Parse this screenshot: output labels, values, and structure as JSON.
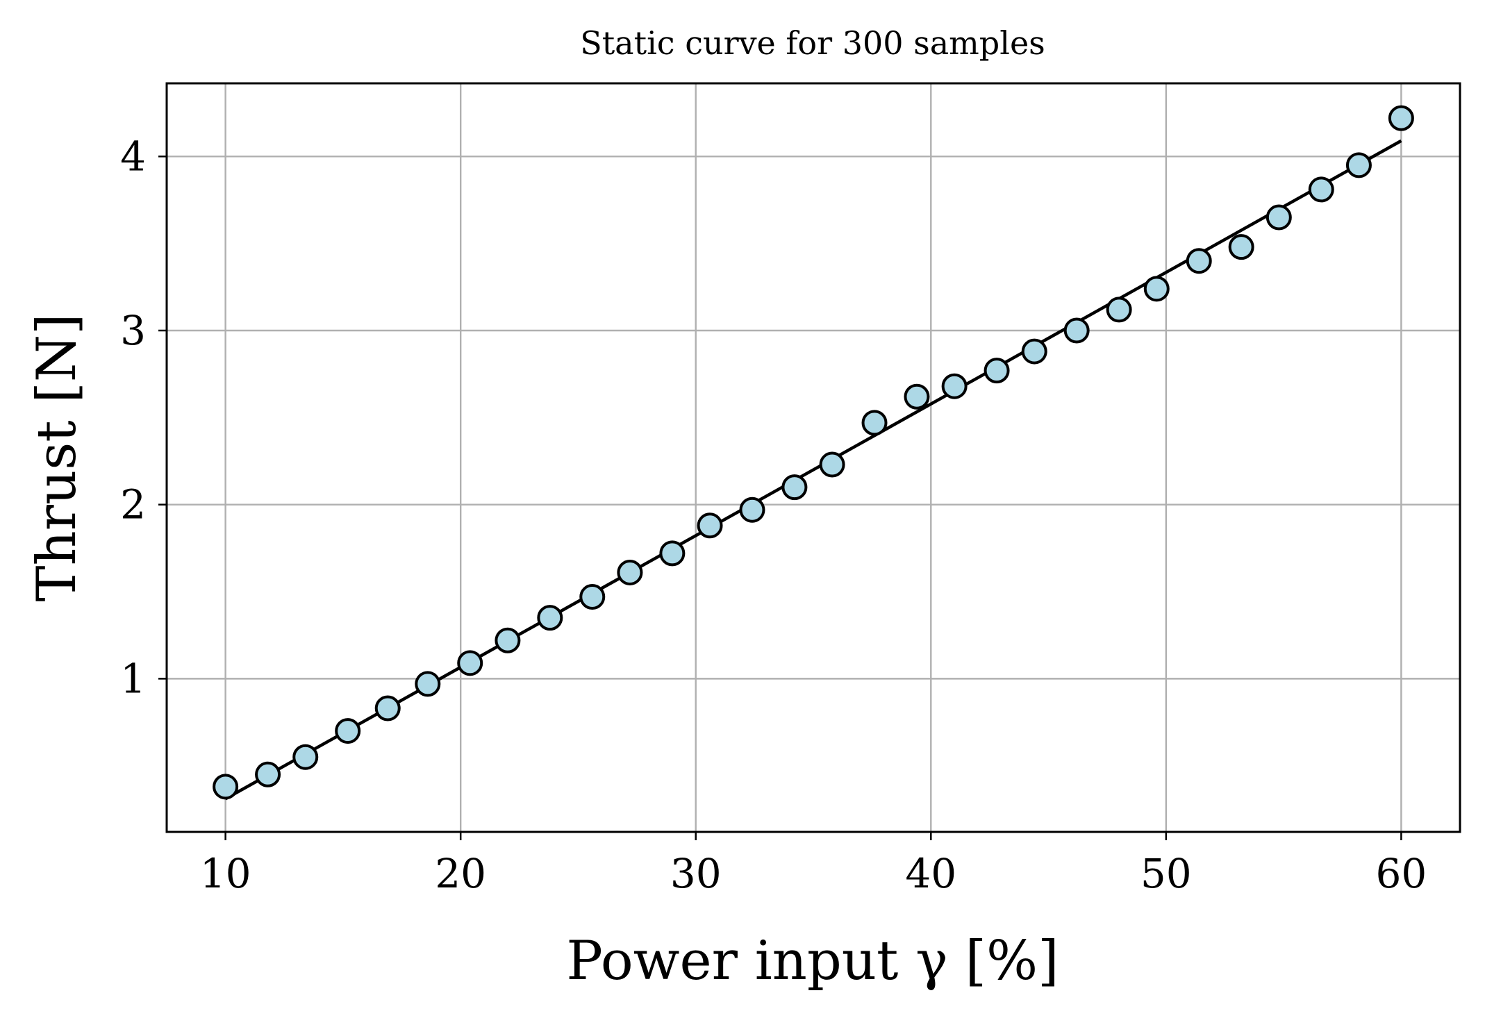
{
  "chart_data": {
    "type": "scatter",
    "title": "Static curve for 300 samples",
    "xlabel": "Power input γ [%]",
    "ylabel": "Thrust [N]",
    "xlim": [
      7.5,
      62.5
    ],
    "ylim": [
      0.12,
      4.42
    ],
    "xticks": [
      10,
      20,
      30,
      40,
      50,
      60
    ],
    "yticks": [
      1,
      2,
      3,
      4
    ],
    "grid": true,
    "series": [
      {
        "kind": "line",
        "color": "#000000",
        "x": [
          10,
          60
        ],
        "y": [
          0.31,
          4.09
        ]
      },
      {
        "kind": "markers",
        "marker_fill": "#add8e6",
        "marker_edge": "#000000",
        "x": [
          10.0,
          11.8,
          13.4,
          15.2,
          16.9,
          18.6,
          20.4,
          22.0,
          23.8,
          25.6,
          27.2,
          29.0,
          30.6,
          32.4,
          34.2,
          35.8,
          37.6,
          39.4,
          41.0,
          42.8,
          44.4,
          46.2,
          48.0,
          49.6,
          51.4,
          53.2,
          54.8,
          56.6,
          58.2,
          60.0
        ],
        "y": [
          0.38,
          0.45,
          0.55,
          0.7,
          0.83,
          0.97,
          1.09,
          1.22,
          1.35,
          1.47,
          1.61,
          1.72,
          1.88,
          1.97,
          2.1,
          2.23,
          2.47,
          2.62,
          2.68,
          2.77,
          2.88,
          3.0,
          3.12,
          3.24,
          3.4,
          3.48,
          3.65,
          3.81,
          3.95,
          4.22
        ]
      }
    ]
  }
}
